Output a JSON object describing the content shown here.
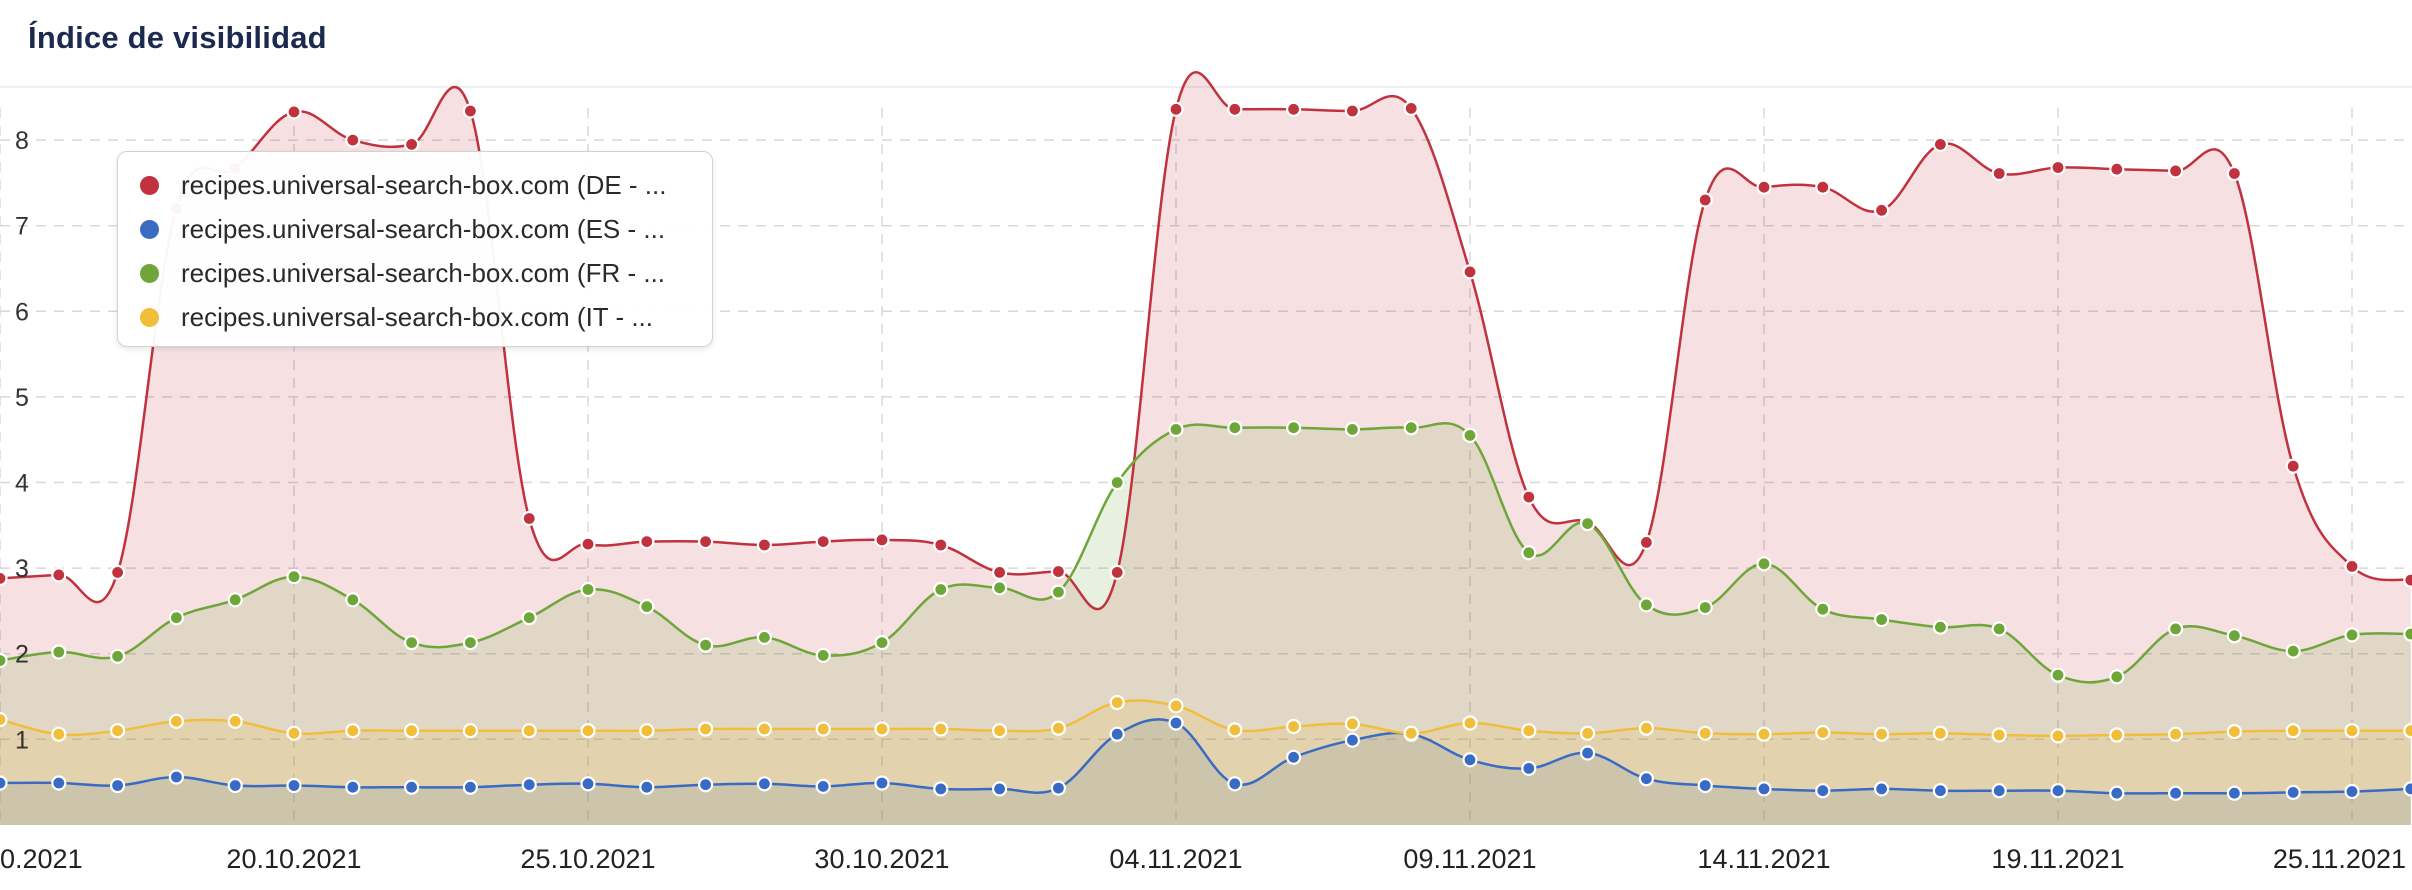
{
  "header": {
    "title": "Índice de visibilidad"
  },
  "chart_data": {
    "type": "area",
    "title": "Índice de visibilidad",
    "xlabel": "",
    "ylabel": "",
    "ylim": [
      0.7,
      8.55
    ],
    "grid": true,
    "legend_position": "top-left",
    "yticks": [
      "1",
      "2",
      "3",
      "4",
      "5",
      "6",
      "7",
      "8"
    ],
    "xtick_labels": [
      "0.2021",
      "20.10.2021",
      "25.10.2021",
      "30.10.2021",
      "04.11.2021",
      "09.11.2021",
      "14.11.2021",
      "19.11.2021",
      "25.11.2021"
    ],
    "xtick_indices": [
      0,
      5,
      10,
      15,
      20,
      25,
      30,
      35,
      40
    ],
    "x": [
      "15.10.2021",
      "16.10.2021",
      "17.10.2021",
      "18.10.2021",
      "19.10.2021",
      "20.10.2021",
      "21.10.2021",
      "22.10.2021",
      "23.10.2021",
      "24.10.2021",
      "25.10.2021",
      "26.10.2021",
      "27.10.2021",
      "28.10.2021",
      "29.10.2021",
      "30.10.2021",
      "31.10.2021",
      "01.11.2021",
      "02.11.2021",
      "03.11.2021",
      "04.11.2021",
      "05.11.2021",
      "06.11.2021",
      "07.11.2021",
      "08.11.2021",
      "09.11.2021",
      "10.11.2021",
      "11.11.2021",
      "12.11.2021",
      "13.11.2021",
      "14.11.2021",
      "15.11.2021",
      "16.11.2021",
      "17.11.2021",
      "18.11.2021",
      "19.11.2021",
      "20.11.2021",
      "21.11.2021",
      "22.11.2021",
      "23.11.2021",
      "24.11.2021",
      "25.11.2021"
    ],
    "series": [
      {
        "name": "recipes.universal-search-box.com (DE - ...",
        "color": "#c0323e",
        "fill": "rgba(192,50,62,0.15)",
        "values": [
          2.88,
          2.92,
          2.95,
          7.2,
          7.67,
          8.33,
          8.0,
          7.95,
          8.34,
          3.58,
          3.28,
          3.31,
          3.31,
          3.27,
          3.31,
          3.33,
          3.27,
          2.95,
          2.96,
          2.95,
          8.36,
          8.36,
          8.36,
          8.34,
          8.37,
          6.46,
          3.83,
          3.54,
          3.3,
          7.3,
          7.45,
          7.45,
          7.18,
          7.95,
          7.61,
          7.68,
          7.66,
          7.64,
          7.61,
          4.19,
          3.02,
          2.86
        ]
      },
      {
        "name": "recipes.universal-search-box.com (ES - ...",
        "color": "#3a6bc4",
        "fill": "rgba(58,107,196,0.16)",
        "values": [
          0.49,
          0.49,
          0.46,
          0.56,
          0.46,
          0.46,
          0.44,
          0.44,
          0.44,
          0.47,
          0.48,
          0.44,
          0.47,
          0.48,
          0.45,
          0.49,
          0.42,
          0.42,
          0.43,
          1.06,
          1.19,
          0.48,
          0.79,
          0.99,
          1.06,
          0.76,
          0.66,
          0.84,
          0.54,
          0.46,
          0.42,
          0.4,
          0.42,
          0.4,
          0.4,
          0.4,
          0.37,
          0.37,
          0.37,
          0.38,
          0.39,
          0.42
        ]
      },
      {
        "name": "recipes.universal-search-box.com (FR - ...",
        "color": "#6ea63a",
        "fill": "rgba(110,166,58,0.16)",
        "values": [
          1.92,
          2.02,
          1.97,
          2.42,
          2.63,
          2.9,
          2.63,
          2.13,
          2.13,
          2.42,
          2.75,
          2.55,
          2.1,
          2.19,
          1.98,
          2.13,
          2.75,
          2.77,
          2.72,
          4.0,
          4.62,
          4.64,
          4.64,
          4.62,
          4.64,
          4.55,
          3.18,
          3.52,
          2.57,
          2.54,
          3.05,
          2.52,
          2.4,
          2.31,
          2.29,
          1.75,
          1.73,
          2.29,
          2.21,
          2.03,
          2.22,
          2.23
        ]
      },
      {
        "name": "recipes.universal-search-box.com (IT - ...",
        "color": "#f1be3c",
        "fill": "rgba(241,190,60,0.17)",
        "values": [
          1.23,
          1.06,
          1.1,
          1.21,
          1.21,
          1.07,
          1.1,
          1.1,
          1.1,
          1.1,
          1.1,
          1.1,
          1.12,
          1.12,
          1.12,
          1.12,
          1.12,
          1.1,
          1.13,
          1.43,
          1.39,
          1.11,
          1.15,
          1.18,
          1.07,
          1.19,
          1.1,
          1.07,
          1.13,
          1.07,
          1.06,
          1.08,
          1.06,
          1.07,
          1.05,
          1.04,
          1.05,
          1.06,
          1.09,
          1.1,
          1.1,
          1.1
        ]
      }
    ]
  }
}
